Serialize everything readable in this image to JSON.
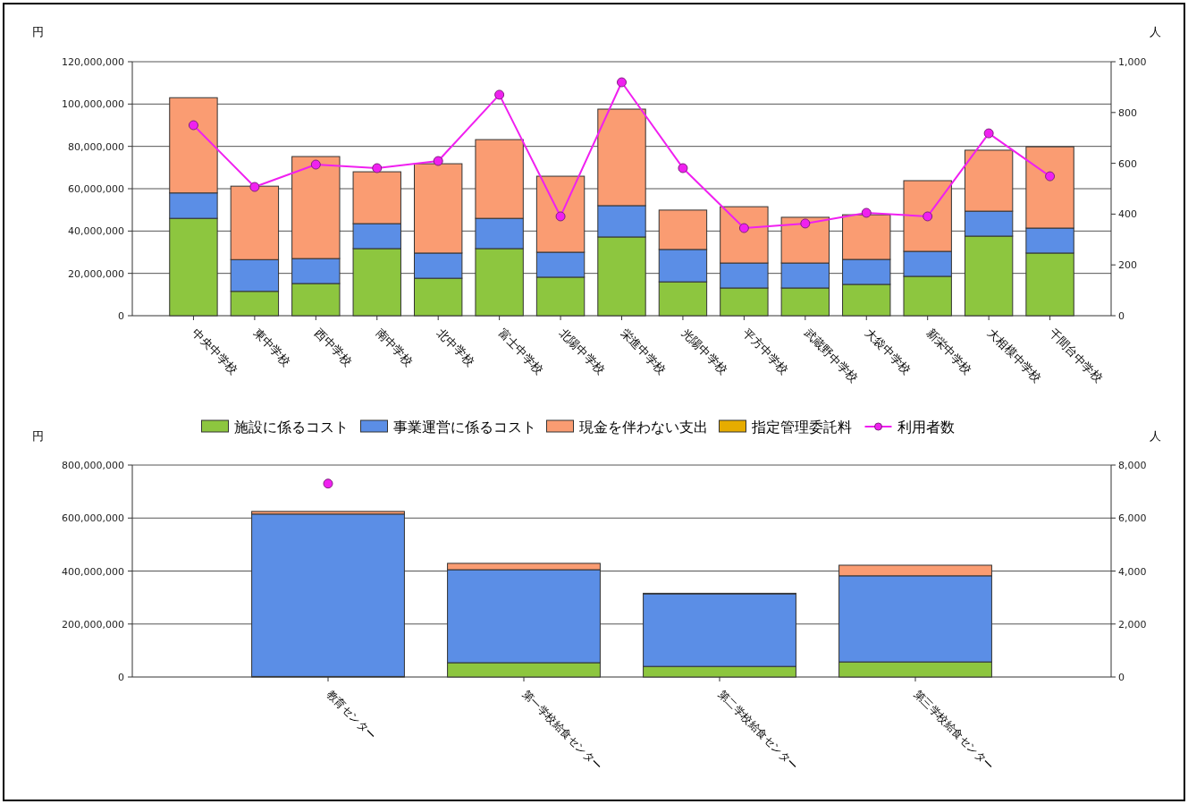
{
  "chart_data": [
    {
      "type": "bar",
      "stacked": true,
      "ylabel": "円",
      "y2label": "人",
      "grid": "y",
      "legend": "bottom",
      "categories": [
        "中央中学校",
        "東中学校",
        "西中学校",
        "南中学校",
        "北中学校",
        "富士中学校",
        "北陽中学校",
        "栄進中学校",
        "光陽中学校",
        "平方中学校",
        "武蔵野中学校",
        "大袋中学校",
        "新栄中学校",
        "大相模中学校",
        "千間台中学校"
      ],
      "ylim": [
        0,
        120000000
      ],
      "yticks": [
        0,
        {
          "value": 20000000,
          "label": "20,000,000"
        },
        {
          "value": 40000000,
          "label": "40,000,000"
        },
        {
          "value": 60000000,
          "label": "60,000,000"
        },
        {
          "value": 80000000,
          "label": "80,000,000"
        },
        {
          "value": 100000000,
          "label": "100,000,000"
        },
        {
          "value": 120000000,
          "label": "120,000,000"
        }
      ],
      "y2lim": [
        0,
        1000
      ],
      "y2ticks": [
        0,
        200,
        400,
        600,
        800,
        {
          "value": 1000,
          "label": "1,000"
        }
      ],
      "series": [
        {
          "name": "施設に係るコスト",
          "color": "#8dc63f",
          "values": [
            46000000,
            11500000,
            15200000,
            31700000,
            17700000,
            31700000,
            18200000,
            37200000,
            16000000,
            13100000,
            13100000,
            14800000,
            18600000,
            37600000,
            29600000
          ]
        },
        {
          "name": "事業運営に係るコスト",
          "color": "#5b8ee6",
          "values": [
            12000000,
            15000000,
            11800000,
            11800000,
            11900000,
            14300000,
            11800000,
            14800000,
            15300000,
            11800000,
            11800000,
            11800000,
            11800000,
            11800000,
            11800000
          ]
        },
        {
          "name": "現金を伴わない支出",
          "color": "#fa9c72",
          "values": [
            45000000,
            34700000,
            48200000,
            24500000,
            42200000,
            37200000,
            35900000,
            45600000,
            18600000,
            26600000,
            21600000,
            21100000,
            33400000,
            28800000,
            38400000
          ]
        },
        {
          "name": "指定管理委託料",
          "color": "#e6ac00",
          "values": [
            0,
            0,
            0,
            0,
            0,
            0,
            0,
            0,
            0,
            0,
            0,
            0,
            0,
            0,
            0
          ]
        },
        {
          "name": "利用者数",
          "type": "line",
          "axis": "y2",
          "marker": "circle",
          "color": "#f020f0",
          "values": [
            750,
            507,
            595,
            581,
            609,
            870,
            391,
            919,
            581,
            345,
            363,
            405,
            391,
            718,
            549
          ]
        }
      ]
    },
    {
      "type": "bar",
      "stacked": true,
      "ylabel": "円",
      "y2label": "人",
      "grid": "y",
      "categories": [
        "教育センター",
        "第一学校給食センター",
        "第二学校給食センター",
        "第三学校給食センター"
      ],
      "ylim": [
        0,
        800000000
      ],
      "yticks": [
        0,
        {
          "value": 200000000,
          "label": "200,000,000"
        },
        {
          "value": 400000000,
          "label": "400,000,000"
        },
        {
          "value": 600000000,
          "label": "600,000,000"
        },
        {
          "value": 800000000,
          "label": "800,000,000"
        }
      ],
      "y2lim": [
        0,
        8000
      ],
      "y2ticks": [
        0,
        {
          "value": 2000,
          "label": "2,000"
        },
        {
          "value": 4000,
          "label": "4,000"
        },
        {
          "value": 6000,
          "label": "6,000"
        },
        {
          "value": 8000,
          "label": "8,000"
        }
      ],
      "series": [
        {
          "color": "#8dc63f",
          "values": [
            2000000,
            54000000,
            40000000,
            57000000
          ]
        },
        {
          "color": "#5b8ee6",
          "values": [
            613000000,
            351000000,
            274000000,
            325000000
          ]
        },
        {
          "color": "#fa9c72",
          "values": [
            10000000,
            24000000,
            2000000,
            40000000
          ]
        },
        {
          "color": "#e6ac00",
          "values": [
            0,
            0,
            0,
            0
          ]
        },
        {
          "type": "line",
          "axis": "y2",
          "marker": "circle",
          "color": "#f020f0",
          "values": [
            7300,
            null,
            null,
            null
          ]
        }
      ]
    }
  ]
}
